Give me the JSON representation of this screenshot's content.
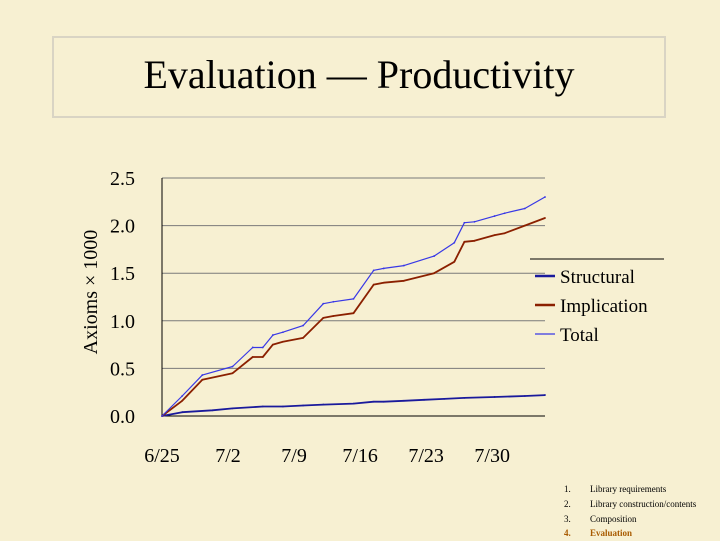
{
  "slide": {
    "title": "Evaluation — Productivity"
  },
  "chart_data": {
    "type": "line",
    "title": "",
    "xlabel": "",
    "ylabel": "Axioms × 1000",
    "ylim": [
      0,
      2.5
    ],
    "yticks": [
      "0.0",
      "0.5",
      "1.0",
      "1.5",
      "2.0",
      "2.5"
    ],
    "xticks": [
      "6/25",
      "7/2",
      "7/9",
      "7/16",
      "7/23",
      "7/30"
    ],
    "xrange": [
      0,
      38
    ],
    "legend_position": "right",
    "series": [
      {
        "name": "Structural",
        "color": "#1a1a9c",
        "x": [
          0,
          2,
          5,
          7,
          10,
          12,
          14,
          16,
          19,
          21,
          22,
          24,
          26,
          28,
          30,
          33,
          36,
          38
        ],
        "values": [
          0.0,
          0.04,
          0.06,
          0.08,
          0.1,
          0.1,
          0.11,
          0.12,
          0.13,
          0.15,
          0.15,
          0.16,
          0.17,
          0.18,
          0.19,
          0.2,
          0.21,
          0.22
        ]
      },
      {
        "name": "Implication",
        "color": "#8b2000",
        "x": [
          0,
          2,
          4,
          7,
          9,
          10,
          11,
          12,
          14,
          16,
          17,
          19,
          21,
          22,
          24,
          27,
          29,
          30,
          31,
          33,
          34,
          36,
          38
        ],
        "values": [
          0.0,
          0.16,
          0.38,
          0.45,
          0.62,
          0.62,
          0.75,
          0.78,
          0.82,
          1.03,
          1.05,
          1.08,
          1.38,
          1.4,
          1.42,
          1.5,
          1.62,
          1.83,
          1.84,
          1.9,
          1.92,
          2.0,
          2.08
        ]
      },
      {
        "name": "Total",
        "color": "#3838e6",
        "x": [
          0,
          2,
          4,
          7,
          9,
          10,
          11,
          12,
          14,
          16,
          17,
          19,
          21,
          22,
          24,
          27,
          29,
          30,
          31,
          33,
          34,
          36,
          38
        ],
        "values": [
          0.0,
          0.21,
          0.43,
          0.52,
          0.72,
          0.72,
          0.85,
          0.88,
          0.95,
          1.18,
          1.2,
          1.23,
          1.53,
          1.55,
          1.58,
          1.68,
          1.82,
          2.03,
          2.04,
          2.1,
          2.13,
          2.18,
          2.3
        ]
      }
    ]
  },
  "outline": {
    "items": [
      {
        "num": "1.",
        "label": "Library requirements",
        "active": false
      },
      {
        "num": "2.",
        "label": "Library construction/contents",
        "active": false
      },
      {
        "num": "3.",
        "label": "Composition",
        "active": false
      },
      {
        "num": "4.",
        "label": "Evaluation",
        "active": true
      }
    ]
  }
}
